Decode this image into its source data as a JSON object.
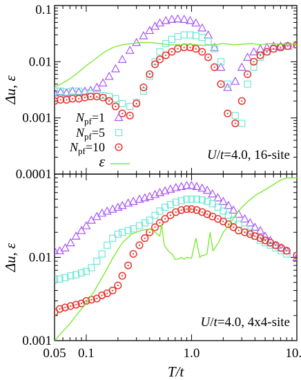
{
  "chart_data": [
    {
      "type": "scatter",
      "panel": "top",
      "xscale": "log",
      "yscale": "log",
      "xlim": [
        0.05,
        10.0
      ],
      "ylim": [
        0.0001,
        0.1
      ],
      "ylabel": "Δu, ε",
      "xlabel": "",
      "yticks": [
        "0.0001",
        "0.001",
        "0.01",
        "0.1"
      ],
      "annotation": "U/t=4.0, 16-site",
      "legend_position": "bottom-left",
      "legend": [
        {
          "label_main": "N",
          "label_sub": "pf",
          "label_rest": "=1"
        },
        {
          "label_main": "N",
          "label_sub": "pf",
          "label_rest": "=5"
        },
        {
          "label_main": "N",
          "label_sub": "pf",
          "label_rest": "=10"
        },
        {
          "label_main": "ε",
          "label_sub": "",
          "label_rest": ""
        }
      ],
      "series": [
        {
          "name": "Npf=1",
          "marker": "triangle",
          "color": "#a855f7",
          "x": [
            0.05,
            0.057,
            0.065,
            0.074,
            0.085,
            0.097,
            0.11,
            0.126,
            0.144,
            0.165,
            0.19,
            0.22,
            0.26,
            0.3,
            0.35,
            0.4,
            0.45,
            0.5,
            0.57,
            0.65,
            0.74,
            0.85,
            0.97,
            1.1,
            1.26,
            1.44,
            1.65,
            1.9,
            2.2,
            2.6,
            3.0,
            3.4,
            3.9,
            4.5,
            5.2,
            6.0,
            7.0,
            8.2,
            10.0
          ],
          "y": [
            0.0028,
            0.0029,
            0.0028,
            0.003,
            0.0029,
            0.003,
            0.0031,
            0.0035,
            0.0042,
            0.0055,
            0.0075,
            0.011,
            0.016,
            0.022,
            0.029,
            0.036,
            0.043,
            0.049,
            0.054,
            0.057,
            0.058,
            0.057,
            0.054,
            0.049,
            0.04,
            0.03,
            0.018,
            0.008,
            0.0035,
            0.0045,
            0.008,
            0.012,
            0.015,
            0.017,
            0.018,
            0.019,
            0.019,
            0.019,
            0.02
          ]
        },
        {
          "name": "Npf=5",
          "marker": "square",
          "color": "#6ee7d6",
          "x": [
            0.05,
            0.057,
            0.065,
            0.074,
            0.085,
            0.097,
            0.11,
            0.126,
            0.144,
            0.165,
            0.19,
            0.22,
            0.26,
            0.3,
            0.35,
            0.4,
            0.45,
            0.5,
            0.57,
            0.65,
            0.74,
            0.85,
            0.97,
            1.1,
            1.26,
            1.44,
            1.65,
            1.9,
            2.2,
            2.6,
            3.0,
            3.4,
            3.9,
            4.5,
            5.2,
            6.0,
            7.0,
            8.2,
            10.0
          ],
          "y": [
            0.003,
            0.003,
            0.0029,
            0.003,
            0.003,
            0.0028,
            0.0027,
            0.0026,
            0.0025,
            0.0024,
            0.0022,
            0.0018,
            0.0016,
            0.0019,
            0.003,
            0.0055,
            0.01,
            0.015,
            0.021,
            0.025,
            0.028,
            0.03,
            0.03,
            0.029,
            0.027,
            0.023,
            0.017,
            0.01,
            0.004,
            0.0011,
            0.0008,
            0.004,
            0.008,
            0.012,
            0.015,
            0.017,
            0.018,
            0.019,
            0.02
          ]
        },
        {
          "name": "Npf=10",
          "marker": "circle",
          "color": "#e8312a",
          "x": [
            0.05,
            0.057,
            0.065,
            0.074,
            0.085,
            0.097,
            0.11,
            0.126,
            0.144,
            0.165,
            0.19,
            0.22,
            0.26,
            0.3,
            0.35,
            0.4,
            0.45,
            0.5,
            0.57,
            0.65,
            0.74,
            0.85,
            0.97,
            1.1,
            1.26,
            1.44,
            1.65,
            1.9,
            2.2,
            2.6,
            3.0,
            3.4,
            3.9,
            4.5,
            5.2,
            6.0,
            7.0,
            8.2,
            10.0
          ],
          "y": [
            0.002,
            0.0021,
            0.0021,
            0.0022,
            0.0022,
            0.0023,
            0.0024,
            0.0024,
            0.0023,
            0.002,
            0.0016,
            0.0012,
            0.0011,
            0.0018,
            0.0035,
            0.006,
            0.009,
            0.011,
            0.013,
            0.015,
            0.017,
            0.018,
            0.018,
            0.017,
            0.015,
            0.012,
            0.008,
            0.004,
            0.0012,
            0.0008,
            0.002,
            0.006,
            0.01,
            0.013,
            0.015,
            0.017,
            0.018,
            0.019,
            0.02
          ]
        },
        {
          "name": "ε",
          "marker": "line",
          "color": "#7ee836",
          "x": [
            0.05,
            0.06,
            0.07,
            0.08,
            0.1,
            0.12,
            0.15,
            0.18,
            0.22,
            0.27,
            0.33,
            0.4,
            0.5,
            0.6,
            0.75,
            0.9,
            1.1,
            1.3,
            1.6,
            2.0,
            2.5,
            3.0,
            3.7,
            4.5,
            5.5,
            7.0,
            8.5,
            10.0
          ],
          "y": [
            0.0035,
            0.0042,
            0.005,
            0.006,
            0.0085,
            0.011,
            0.015,
            0.018,
            0.02,
            0.021,
            0.022,
            0.022,
            0.021,
            0.02,
            0.02,
            0.0205,
            0.02,
            0.0195,
            0.02,
            0.021,
            0.02,
            0.0205,
            0.021,
            0.02,
            0.021,
            0.0205,
            0.021,
            0.02
          ]
        }
      ]
    },
    {
      "type": "scatter",
      "panel": "bottom",
      "xscale": "log",
      "yscale": "log",
      "xlim": [
        0.05,
        10.0
      ],
      "ylim": [
        0.001,
        0.1
      ],
      "ylabel": "Δu, ε",
      "xlabel": "T/t",
      "yticks": [
        "0.001",
        "0.01"
      ],
      "xticks": [
        "0.05",
        "0.1",
        "1.0",
        "10.0"
      ],
      "annotation": "U/t=4.0, 4x4-site",
      "series": [
        {
          "name": "Npf=1",
          "marker": "triangle",
          "color": "#a855f7",
          "x": [
            0.05,
            0.056,
            0.063,
            0.071,
            0.08,
            0.09,
            0.1,
            0.112,
            0.126,
            0.141,
            0.158,
            0.178,
            0.2,
            0.22,
            0.25,
            0.28,
            0.32,
            0.36,
            0.4,
            0.45,
            0.5,
            0.56,
            0.63,
            0.71,
            0.8,
            0.9,
            1.0,
            1.12,
            1.26,
            1.41,
            1.58,
            1.78,
            2.0,
            2.24,
            2.5,
            2.8,
            3.2,
            3.6,
            4.0,
            4.5,
            5.0,
            5.6,
            6.3,
            7.1,
            8.0,
            10.0
          ],
          "y": [
            0.012,
            0.012,
            0.013,
            0.015,
            0.018,
            0.021,
            0.024,
            0.028,
            0.031,
            0.034,
            0.036,
            0.038,
            0.04,
            0.042,
            0.045,
            0.047,
            0.05,
            0.052,
            0.054,
            0.057,
            0.06,
            0.063,
            0.066,
            0.069,
            0.071,
            0.073,
            0.073,
            0.071,
            0.068,
            0.064,
            0.058,
            0.052,
            0.047,
            0.042,
            0.037,
            0.033,
            0.029,
            0.026,
            0.023,
            0.021,
            0.018,
            0.016,
            0.014,
            0.013,
            0.012,
            0.01
          ]
        },
        {
          "name": "Npf=5",
          "marker": "square",
          "color": "#6ee7d6",
          "x": [
            0.05,
            0.056,
            0.063,
            0.071,
            0.08,
            0.09,
            0.1,
            0.112,
            0.126,
            0.141,
            0.158,
            0.178,
            0.2,
            0.22,
            0.25,
            0.28,
            0.32,
            0.36,
            0.4,
            0.45,
            0.5,
            0.56,
            0.63,
            0.71,
            0.8,
            0.9,
            1.0,
            1.12,
            1.26,
            1.41,
            1.58,
            1.78,
            2.0,
            2.24,
            2.5,
            2.8,
            3.2,
            3.6,
            4.0,
            4.5,
            5.0,
            5.6,
            6.3,
            7.1,
            8.0,
            10.0
          ],
          "y": [
            0.0055,
            0.0055,
            0.0057,
            0.006,
            0.0062,
            0.0065,
            0.0068,
            0.0075,
            0.009,
            0.011,
            0.014,
            0.017,
            0.019,
            0.02,
            0.021,
            0.022,
            0.024,
            0.026,
            0.028,
            0.032,
            0.036,
            0.04,
            0.043,
            0.046,
            0.048,
            0.05,
            0.05,
            0.05,
            0.049,
            0.047,
            0.044,
            0.04,
            0.036,
            0.032,
            0.028,
            0.025,
            0.022,
            0.02,
            0.018,
            0.016,
            0.015,
            0.014,
            0.013,
            0.012,
            0.011,
            0.0105
          ]
        },
        {
          "name": "Npf=10",
          "marker": "circle",
          "color": "#e8312a",
          "x": [
            0.05,
            0.056,
            0.063,
            0.071,
            0.08,
            0.09,
            0.1,
            0.112,
            0.126,
            0.141,
            0.158,
            0.178,
            0.2,
            0.22,
            0.25,
            0.28,
            0.32,
            0.36,
            0.4,
            0.45,
            0.5,
            0.56,
            0.63,
            0.71,
            0.8,
            0.9,
            1.0,
            1.12,
            1.26,
            1.41,
            1.58,
            1.78,
            2.0,
            2.24,
            2.5,
            2.8,
            3.2,
            3.6,
            4.0,
            4.5,
            5.0,
            5.6,
            6.3,
            7.1,
            8.0,
            10.0
          ],
          "y": [
            0.0022,
            0.0024,
            0.0025,
            0.0026,
            0.0027,
            0.0028,
            0.003,
            0.0031,
            0.0032,
            0.0035,
            0.0037,
            0.004,
            0.0046,
            0.006,
            0.008,
            0.011,
            0.014,
            0.017,
            0.02,
            0.023,
            0.026,
            0.029,
            0.032,
            0.035,
            0.037,
            0.038,
            0.038,
            0.037,
            0.035,
            0.033,
            0.031,
            0.029,
            0.027,
            0.025,
            0.023,
            0.021,
            0.02,
            0.019,
            0.018,
            0.017,
            0.016,
            0.015,
            0.014,
            0.013,
            0.012,
            0.0105
          ]
        },
        {
          "name": "ε",
          "marker": "line",
          "color": "#7ee836",
          "x": [
            0.05,
            0.06,
            0.07,
            0.08,
            0.1,
            0.12,
            0.15,
            0.18,
            0.22,
            0.27,
            0.33,
            0.4,
            0.45,
            0.5,
            0.52,
            0.55,
            0.6,
            0.65,
            0.7,
            0.75,
            0.8,
            0.85,
            0.9,
            1.0,
            1.1,
            1.2,
            1.25,
            1.3,
            1.4,
            1.5,
            1.6,
            1.8,
            2.0,
            2.3,
            2.6,
            3.0,
            3.5,
            4.0,
            5.0,
            6.0,
            7.0,
            8.0,
            10.0
          ],
          "y": [
            0.001,
            0.0013,
            0.0016,
            0.002,
            0.0028,
            0.004,
            0.0065,
            0.01,
            0.015,
            0.019,
            0.021,
            0.022,
            0.02,
            0.018,
            0.025,
            0.014,
            0.012,
            0.011,
            0.0095,
            0.0095,
            0.01,
            0.0095,
            0.01,
            0.0098,
            0.017,
            0.01,
            0.0105,
            0.0105,
            0.011,
            0.02,
            0.012,
            0.015,
            0.02,
            0.025,
            0.032,
            0.04,
            0.048,
            0.055,
            0.065,
            0.075,
            0.085,
            0.09,
            0.09
          ]
        }
      ]
    }
  ]
}
